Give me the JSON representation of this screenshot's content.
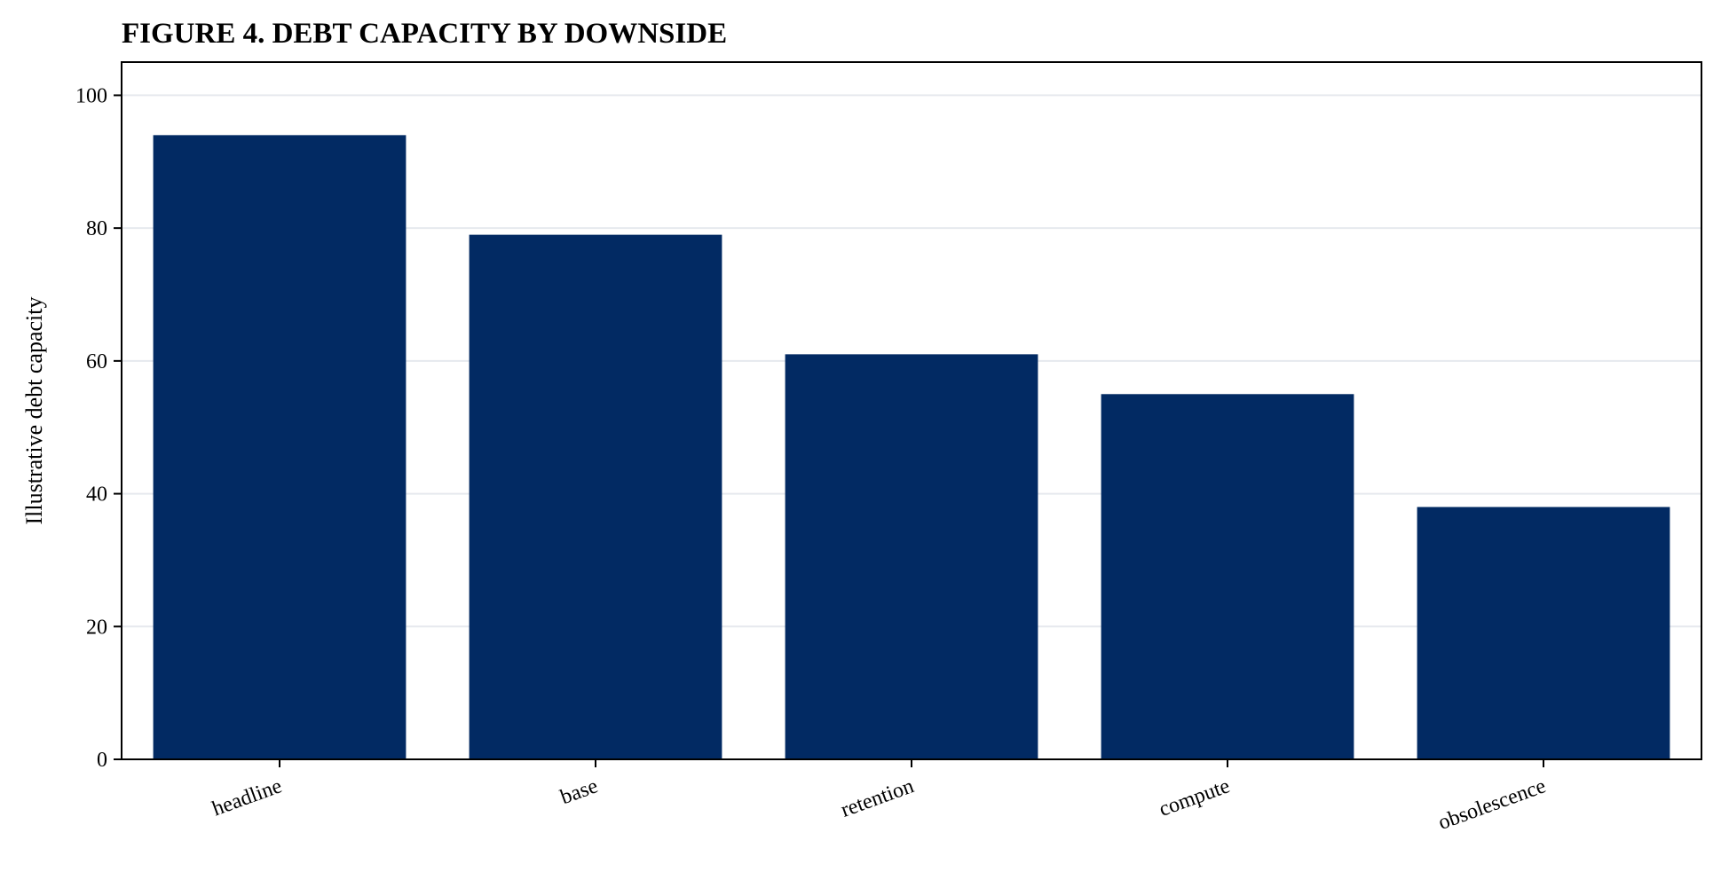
{
  "chart_data": {
    "type": "bar",
    "title": "FIGURE 4. DEBT CAPACITY BY DOWNSIDE",
    "xlabel": "",
    "ylabel": "Illustrative debt capacity",
    "categories": [
      "headline",
      "base",
      "retention",
      "compute",
      "obsolescence"
    ],
    "values": [
      94,
      79,
      61,
      55,
      38
    ],
    "ylim": [
      0,
      105
    ],
    "yticks": [
      0,
      20,
      40,
      60,
      80,
      100
    ],
    "grid": "horizontal",
    "legend": "none",
    "colors": {
      "bar": "#022a63",
      "grid": "#e6e9ee",
      "axis": "#000000"
    }
  }
}
